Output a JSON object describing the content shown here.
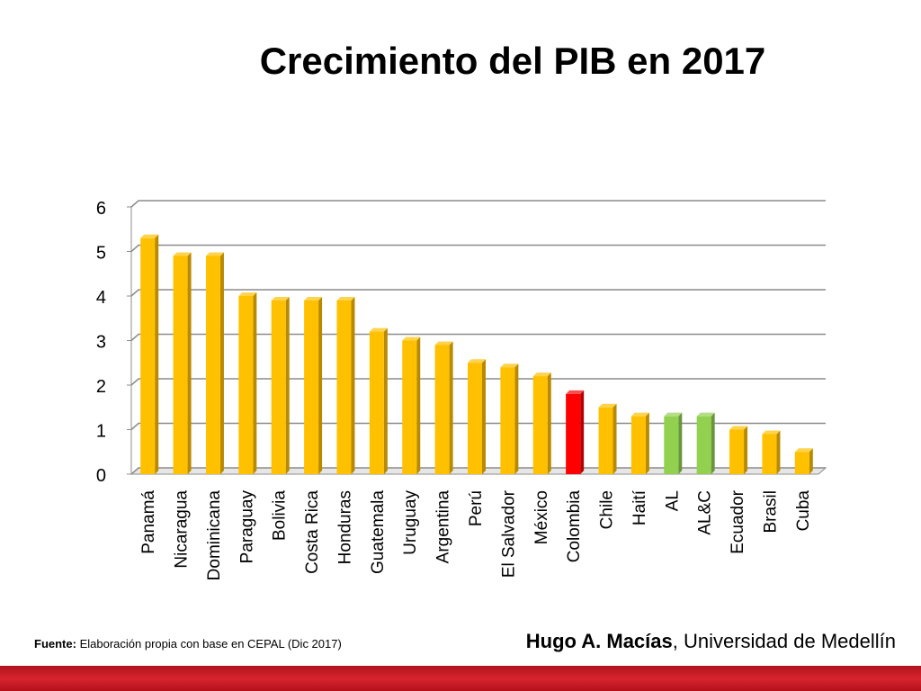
{
  "slide": {
    "title": "Crecimiento del PIB en 2017",
    "source_label": "Fuente:",
    "source_text": "Elaboración propia con base en CEPAL (Dic 2017)",
    "author_name": "Hugo A. Macías",
    "author_affiliation": ", Universidad de Medellín"
  },
  "colors": {
    "default": "#ffc000",
    "highlight": "#ff0000",
    "regional": "#92d050",
    "footer_bar": "#c8141f"
  },
  "chart_data": {
    "type": "bar",
    "title": "Crecimiento del PIB en 2017",
    "xlabel": "",
    "ylabel": "",
    "ylim": [
      0,
      6
    ],
    "yticks": [
      0,
      1,
      2,
      3,
      4,
      5,
      6
    ],
    "grid": true,
    "legend": "none",
    "style": "3d",
    "categories": [
      "Panamá",
      "Nicaragua",
      "Dominicana",
      "Paraguay",
      "Bolivia",
      "Costa Rica",
      "Honduras",
      "Guatemala",
      "Uruguay",
      "Argentina",
      "Perú",
      "El Salvador",
      "México",
      "Colombia",
      "Chile",
      "Haití",
      "AL",
      "AL&C",
      "Ecuador",
      "Brasil",
      "Cuba"
    ],
    "values": [
      5.3,
      4.9,
      4.9,
      4.0,
      3.9,
      3.9,
      3.9,
      3.2,
      3.0,
      2.9,
      2.5,
      2.4,
      2.2,
      1.8,
      1.5,
      1.3,
      1.3,
      1.3,
      1.0,
      0.9,
      0.5
    ],
    "bar_colors": [
      "#ffc000",
      "#ffc000",
      "#ffc000",
      "#ffc000",
      "#ffc000",
      "#ffc000",
      "#ffc000",
      "#ffc000",
      "#ffc000",
      "#ffc000",
      "#ffc000",
      "#ffc000",
      "#ffc000",
      "#ff0000",
      "#ffc000",
      "#ffc000",
      "#92d050",
      "#92d050",
      "#ffc000",
      "#ffc000",
      "#ffc000"
    ]
  }
}
